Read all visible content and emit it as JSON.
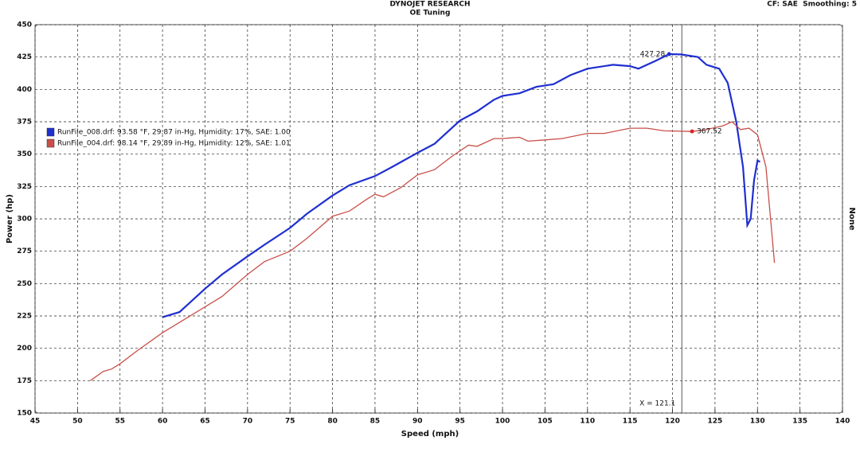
{
  "chart_data": {
    "type": "line",
    "title": "DYNOJET RESEARCH",
    "subtitle": "OE Tuning",
    "corner_note": "CF: SAE  Smoothing: 5",
    "x_label": "Speed (mph)",
    "y_label": "Power (hp)",
    "y2_label": "None",
    "xlim": [
      45,
      140
    ],
    "xticks": [
      45,
      50,
      55,
      60,
      65,
      70,
      75,
      80,
      85,
      90,
      95,
      100,
      105,
      110,
      115,
      120,
      125,
      130,
      135,
      140
    ],
    "ylim": [
      150,
      450
    ],
    "yticks": [
      150,
      175,
      200,
      225,
      250,
      275,
      300,
      325,
      350,
      375,
      400,
      425,
      450
    ],
    "grid": true,
    "legend": "upper left",
    "series": [
      {
        "name": "RunFile_008.drf: 93.58 °F, 29.87 in-Hg, Humidity: 17%, SAE: 1.00",
        "color": "#1f2fd0",
        "x": [
          60,
          62,
          65,
          67,
          70,
          72,
          75,
          77,
          80,
          82,
          85,
          87,
          90,
          92,
          95,
          97,
          99,
          100,
          102,
          104,
          106,
          108,
          110,
          113,
          115,
          116,
          118,
          119.6,
          121,
          123,
          124,
          125.5,
          126.5,
          127.5,
          128.3,
          128.8,
          129.2,
          129.6,
          130,
          130.3
        ],
        "values": [
          224,
          228,
          246,
          257,
          271,
          280,
          293,
          304,
          318,
          326,
          333,
          340,
          351,
          358,
          376,
          383,
          392,
          395,
          397,
          402,
          404,
          411,
          416,
          419,
          418,
          416,
          422,
          427.28,
          427,
          425,
          419,
          416,
          405,
          375,
          340,
          295,
          300,
          330,
          345,
          344
        ]
      },
      {
        "name": "RunFile_004.drf: 98.14 °F, 29.89 in-Hg, Humidity: 12%, SAE: 1.01",
        "color": "#c9504a",
        "x": [
          51.5,
          53,
          54,
          55,
          57,
          60,
          62,
          65,
          67,
          70,
          72,
          75,
          77,
          80,
          82,
          84,
          85,
          86,
          88,
          90,
          92,
          94,
          96,
          97,
          99,
          100,
          102,
          103,
          105,
          107,
          110,
          112,
          115,
          117,
          119,
          122.3,
          124,
          126,
          127,
          128,
          129,
          130,
          131,
          132
        ],
        "values": [
          175,
          182,
          184,
          188,
          198,
          212,
          220,
          232,
          240,
          257,
          267,
          275,
          285,
          302,
          306,
          315,
          319,
          317,
          324,
          334,
          338,
          348,
          357,
          356,
          362,
          362,
          363,
          360,
          361,
          362,
          366,
          366,
          370,
          370,
          368,
          367.52,
          369,
          372,
          375,
          369,
          370,
          365,
          340,
          266
        ]
      }
    ],
    "annotations": [
      {
        "x": 119.6,
        "y": 427.28,
        "color": "#1f2fd0"
      },
      {
        "x": 122.3,
        "y": 367.52,
        "color": "#e02020"
      }
    ],
    "cursor": {
      "value": 121.1,
      "label": "X = 121.1"
    }
  }
}
